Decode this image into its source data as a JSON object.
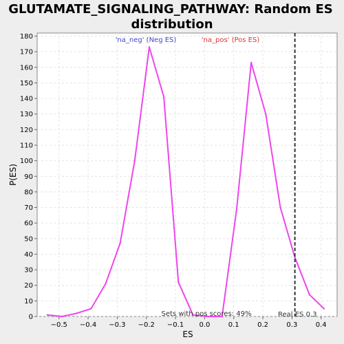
{
  "chart_data": {
    "type": "line",
    "title_line1": "GLUTAMATE_SIGNALING_PATHWAY: Random ES",
    "title_line2": "distribution",
    "xlabel": "ES",
    "ylabel": "P(ES)",
    "xlim": [
      -0.575,
      0.455
    ],
    "ylim": [
      0,
      182
    ],
    "xticks": [
      -0.5,
      -0.4,
      -0.3,
      -0.2,
      -0.1,
      0.0,
      0.1,
      0.2,
      0.3,
      0.4
    ],
    "xtick_labels": [
      "−0.5",
      "−0.4",
      "−0.3",
      "−0.2",
      "−0.1",
      "0.0",
      "0.1",
      "0.2",
      "0.3",
      "0.4"
    ],
    "yticks": [
      0,
      10,
      20,
      30,
      40,
      50,
      60,
      70,
      80,
      90,
      100,
      110,
      120,
      130,
      140,
      150,
      160,
      170,
      180
    ],
    "grid": true,
    "series": [
      {
        "color": "#ee44ee",
        "x": [
          -0.54,
          -0.49,
          -0.44,
          -0.39,
          -0.34,
          -0.29,
          -0.24,
          -0.19,
          -0.14,
          -0.09,
          -0.04,
          0.01,
          0.06,
          0.11,
          0.16,
          0.21,
          0.26,
          0.31,
          0.36,
          0.41
        ],
        "y": [
          1,
          0,
          2,
          5,
          21,
          47,
          100,
          173,
          141,
          22,
          1,
          0,
          0,
          69,
          163,
          130,
          70,
          38,
          14,
          5
        ]
      }
    ],
    "legend": {
      "neg_label": "'na_neg' (Neg ES)",
      "pos_label": "'na_pos' (Pos ES)",
      "neg_color": "#4444cc",
      "pos_color": "#dd3333"
    },
    "real_es": {
      "value": 0.31,
      "label": "Real ES 0.3"
    },
    "annotation": "Sets with pos scores: 49%"
  }
}
